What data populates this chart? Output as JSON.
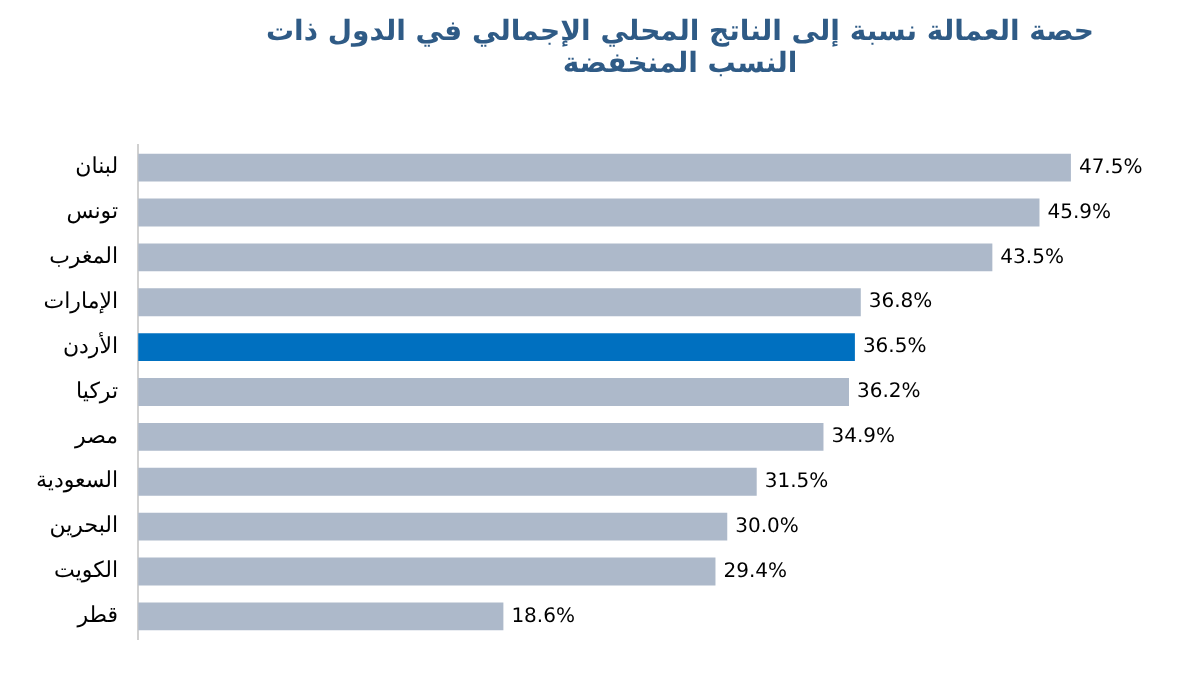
{
  "chart_data": {
    "type": "bar",
    "orientation": "horizontal",
    "title": "حصة العمالة  نسبة إلى الناتج المحلي الإجمالي في الدول ذات النسب المنخفضة",
    "categories": [
      "لبنان",
      "تونس",
      "المغرب",
      "الإمارات",
      "الأردن",
      "تركيا",
      "مصر",
      "السعودية",
      "البحرين",
      "الكويت",
      "قطر"
    ],
    "values": [
      47.5,
      45.9,
      43.5,
      36.8,
      36.5,
      36.2,
      34.9,
      31.5,
      30.0,
      29.4,
      18.6
    ],
    "colors": [
      "#adb9ca",
      "#adb9ca",
      "#adb9ca",
      "#adb9ca",
      "#0070c0",
      "#adb9ca",
      "#adb9ca",
      "#adb9ca",
      "#adb9ca",
      "#adb9ca",
      "#adb9ca"
    ],
    "value_labels": [
      "47.5%",
      "45.9%",
      "43.5%",
      "36.8%",
      "36.5%",
      "36.2%",
      "34.9%",
      "31.5%",
      "30.0%",
      "29.4%",
      "18.6%"
    ],
    "grid": false,
    "legend": false
  }
}
